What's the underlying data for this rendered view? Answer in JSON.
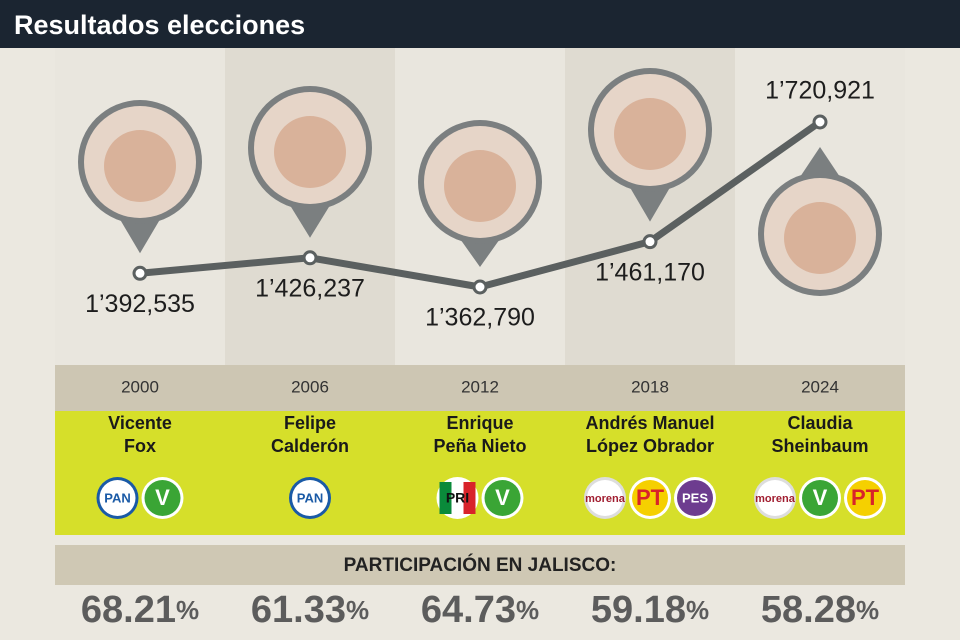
{
  "chart_data": {
    "type": "line",
    "title": "Resultados elecciones",
    "categories": [
      "2000",
      "2006",
      "2012",
      "2018",
      "2024"
    ],
    "candidates": [
      [
        "Vicente",
        "Fox"
      ],
      [
        "Felipe",
        "Calderón"
      ],
      [
        "Enrique",
        "Peña Nieto"
      ],
      [
        "Andrés Manuel",
        "López Obrador"
      ],
      [
        "Claudia",
        "Sheinbaum"
      ]
    ],
    "parties": [
      [
        "PAN",
        "V"
      ],
      [
        "PAN"
      ],
      [
        "PRI",
        "V"
      ],
      [
        "morena",
        "PT",
        "PES"
      ],
      [
        "morena",
        "V",
        "PT"
      ]
    ],
    "series": [
      {
        "color": "#5b6060",
        "values": [
          1392535,
          1426237,
          1362790,
          1461170,
          1720921
        ],
        "value_labels": [
          "1’392,535",
          "1’426,237",
          "1’362,790",
          "1’461,170",
          "1’720,921"
        ]
      }
    ],
    "participation_label": "PARTICIPACIÓN EN JALISCO:",
    "participation": [
      68.21,
      61.33,
      64.73,
      59.18,
      58.28
    ],
    "participation_unit": "%"
  }
}
